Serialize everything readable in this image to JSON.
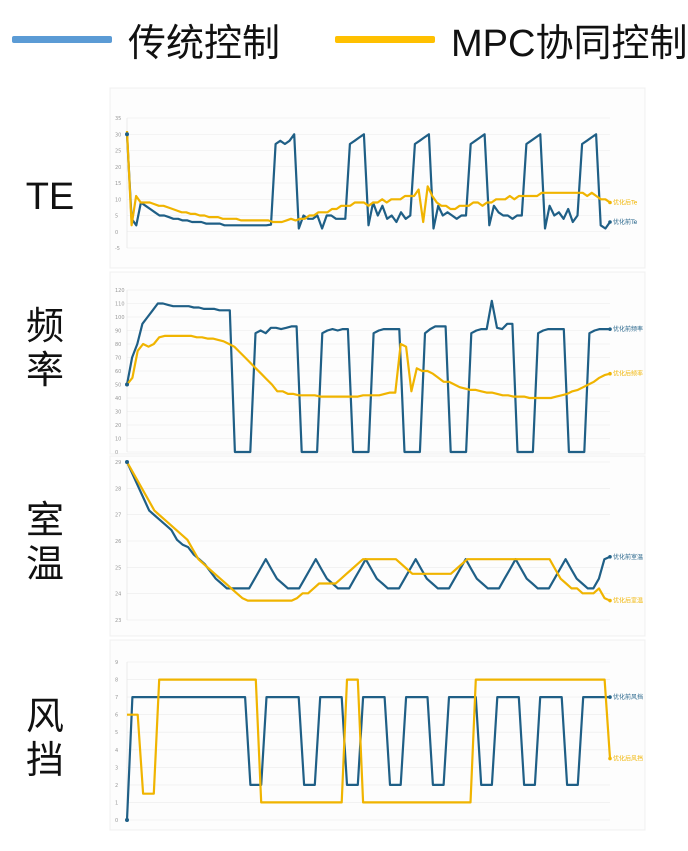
{
  "legend": [
    {
      "label": "传统控制",
      "color": "#1f5f86"
    },
    {
      "label": "MPC协同控制",
      "color": "#f0b400"
    }
  ],
  "legend_swatch_colors": [
    "#5b9bd5",
    "#ffc000"
  ],
  "rows": [
    {
      "label": "TE"
    },
    {
      "label": "频\n率"
    },
    {
      "label": "室\n温"
    },
    {
      "label": "风\n挡"
    }
  ],
  "chart_data": [
    {
      "type": "line",
      "title": "TE",
      "ylim": [
        -5,
        35
      ],
      "y_ticks": [
        "35",
        "30",
        "25",
        "20",
        "15",
        "10",
        "5",
        "0",
        "-5"
      ],
      "series": [
        {
          "name": "优化前Te",
          "color": "#1f5f86",
          "y": [
            30,
            4,
            2,
            9,
            8,
            7,
            6,
            5,
            5,
            4.5,
            4,
            4,
            3.5,
            3.5,
            3,
            3,
            3,
            2.5,
            2.5,
            2.5,
            2.5,
            2,
            2,
            2,
            2,
            2,
            2,
            2,
            2,
            2,
            2,
            2.2,
            27,
            28,
            27,
            28,
            30,
            1,
            5,
            4,
            4,
            5,
            1,
            5,
            5,
            4,
            4,
            4,
            27,
            28,
            29,
            30,
            2,
            9,
            5,
            8,
            4,
            5,
            3,
            6,
            4,
            5,
            27,
            28,
            29,
            30,
            1,
            8,
            5,
            6,
            5,
            4,
            5,
            5,
            27,
            28,
            29,
            30,
            2,
            8,
            6,
            5,
            5,
            4,
            5,
            5,
            27,
            28,
            29,
            30,
            1,
            8,
            5,
            6,
            4,
            7,
            3,
            5,
            27,
            28,
            29,
            30,
            2,
            1,
            3
          ]
        },
        {
          "name": "优化后Te",
          "color": "#f0b400",
          "y": [
            31,
            2,
            11,
            9,
            9,
            9,
            8.5,
            8,
            8,
            7.5,
            7,
            6.5,
            6,
            6,
            5.5,
            5.5,
            5,
            5,
            4.5,
            4.5,
            4.5,
            4,
            4,
            4,
            4,
            3.5,
            3.5,
            3.5,
            3.5,
            3.5,
            3.5,
            3.5,
            3,
            3,
            3,
            3.5,
            4,
            3.5,
            4,
            4,
            5,
            5,
            6,
            6,
            6,
            7,
            7,
            8,
            8,
            8,
            9,
            9,
            9,
            8,
            9,
            9,
            10,
            9,
            10,
            10,
            10,
            11,
            11,
            11,
            13,
            3,
            14,
            11,
            9,
            8,
            8,
            7,
            7,
            8,
            8,
            8,
            9,
            9,
            8,
            9,
            9,
            10,
            10,
            10,
            11,
            10,
            11,
            11,
            11,
            11,
            11,
            12,
            12,
            12,
            12,
            12,
            12,
            12,
            12,
            12,
            12,
            11,
            12,
            11,
            10,
            10,
            9
          ]
        }
      ]
    },
    {
      "type": "line",
      "title": "频率",
      "ylim": [
        0,
        120
      ],
      "y_ticks": [
        "120",
        "110",
        "100",
        "90",
        "80",
        "70",
        "60",
        "50",
        "40",
        "30",
        "20",
        "10",
        "0"
      ],
      "series": [
        {
          "name": "优化前频率",
          "color": "#1f5f86",
          "y": [
            50,
            70,
            80,
            95,
            100,
            105,
            110,
            110,
            109,
            108,
            108,
            108,
            108,
            107,
            107,
            106,
            106,
            106,
            105,
            105,
            105,
            0,
            0,
            0,
            0,
            88,
            90,
            88,
            92,
            92,
            91,
            92,
            93,
            93,
            0,
            0,
            0,
            0,
            88,
            90,
            91,
            90,
            91,
            91,
            0,
            0,
            0,
            0,
            88,
            90,
            91,
            91,
            91,
            91,
            0,
            0,
            0,
            0,
            88,
            91,
            93,
            93,
            93,
            0,
            0,
            0,
            0,
            88,
            90,
            91,
            91,
            112,
            92,
            91,
            95,
            95,
            0,
            0,
            0,
            0,
            88,
            90,
            91,
            91,
            91,
            91,
            0,
            0,
            0,
            0,
            88,
            90,
            91,
            91,
            91
          ]
        },
        {
          "name": "优化后频率",
          "color": "#f0b400",
          "y": [
            50,
            55,
            75,
            80,
            78,
            80,
            85,
            86,
            86,
            86,
            86,
            86,
            86,
            85,
            85,
            84,
            84,
            83,
            82,
            80,
            78,
            74,
            70,
            66,
            62,
            58,
            54,
            50,
            45,
            45,
            43,
            43,
            42,
            42,
            42,
            42,
            41,
            41,
            41,
            41,
            41,
            41,
            41,
            41,
            42,
            42,
            42,
            42,
            43,
            44,
            44,
            80,
            78,
            45,
            62,
            60,
            60,
            58,
            55,
            52,
            52,
            50,
            48,
            47,
            46,
            46,
            45,
            44,
            44,
            43,
            42,
            42,
            41,
            41,
            41,
            40,
            40,
            40,
            40,
            40,
            41,
            42,
            43,
            45,
            46,
            48,
            50,
            52,
            55,
            57,
            58
          ]
        }
      ]
    },
    {
      "type": "line",
      "title": "室温",
      "ylim": [
        22.5,
        29
      ],
      "y_ticks": [
        "29",
        "28",
        "27",
        "26",
        "25",
        "24",
        "23"
      ],
      "series": [
        {
          "name": "优化前室温",
          "color": "#1f5f86",
          "y": [
            29,
            28.5,
            28,
            27.5,
            27,
            26.8,
            26.6,
            26.4,
            26.2,
            25.8,
            25.6,
            25.5,
            25.2,
            25,
            24.8,
            24.5,
            24.2,
            24,
            23.8,
            23.8,
            23.8,
            23.8,
            23.8,
            24.2,
            24.6,
            25,
            24.6,
            24.2,
            24,
            23.8,
            23.8,
            23.8,
            24.2,
            24.6,
            25,
            24.6,
            24.2,
            24,
            23.8,
            23.8,
            23.8,
            24.2,
            24.6,
            25,
            24.6,
            24.2,
            24,
            23.8,
            23.8,
            23.8,
            24.2,
            24.6,
            25,
            24.6,
            24.2,
            24,
            23.8,
            23.8,
            23.8,
            24.2,
            24.6,
            25,
            24.6,
            24.2,
            24,
            23.8,
            23.8,
            23.8,
            24.2,
            24.6,
            25,
            24.6,
            24.2,
            24,
            23.8,
            23.8,
            23.8,
            24.2,
            24.6,
            25,
            24.6,
            24.2,
            24,
            23.8,
            23.8,
            24.2,
            25,
            25.1
          ]
        },
        {
          "name": "优化后室温",
          "color": "#f0b400",
          "y": [
            29,
            28.6,
            28.2,
            27.8,
            27.4,
            27,
            26.8,
            26.6,
            26.4,
            26.2,
            26,
            25.8,
            25.4,
            25,
            24.8,
            24.6,
            24.4,
            24.2,
            24,
            23.8,
            23.6,
            23.4,
            23.3,
            23.3,
            23.3,
            23.3,
            23.3,
            23.3,
            23.3,
            23.3,
            23.3,
            23.4,
            23.6,
            23.6,
            23.8,
            24,
            24,
            24,
            24,
            24.2,
            24.4,
            24.6,
            24.8,
            25,
            25,
            25,
            25,
            25,
            25,
            25,
            24.8,
            24.6,
            24.4,
            24.4,
            24.4,
            24.4,
            24.4,
            24.4,
            24.4,
            24.4,
            24.6,
            24.8,
            25,
            25,
            25,
            25,
            25,
            25,
            25,
            25,
            25,
            25,
            25,
            25,
            25,
            25,
            25,
            25,
            24.6,
            24.2,
            24,
            23.8,
            23.8,
            23.6,
            23.6,
            23.6,
            23.8,
            23.4,
            23.3
          ]
        }
      ]
    },
    {
      "type": "line",
      "title": "风挡",
      "ylim": [
        0,
        9
      ],
      "y_ticks": [
        "9",
        "8",
        "7",
        "6",
        "5",
        "4",
        "3",
        "2",
        "1",
        "0"
      ],
      "series": [
        {
          "name": "优化前风挡",
          "color": "#1f5f86",
          "y": [
            0,
            7,
            7,
            7,
            7,
            7,
            7,
            7,
            7,
            7,
            7,
            7,
            7,
            7,
            7,
            7,
            7,
            7,
            7,
            7,
            7,
            7,
            7,
            2,
            2,
            2,
            7,
            7,
            7,
            7,
            7,
            7,
            7,
            2,
            2,
            2,
            7,
            7,
            7,
            7,
            7,
            2,
            2,
            2,
            7,
            7,
            7,
            7,
            7,
            2,
            2,
            2,
            7,
            7,
            7,
            7,
            7,
            2,
            2,
            2,
            7,
            7,
            7,
            7,
            7,
            7,
            2,
            2,
            2,
            7,
            7,
            7,
            7,
            7,
            2,
            2,
            2,
            7,
            7,
            7,
            7,
            7,
            2,
            2,
            2,
            7,
            7,
            7,
            7,
            7,
            7
          ]
        },
        {
          "name": "优化后风挡",
          "color": "#f0b400",
          "y": [
            6,
            6,
            6,
            1.5,
            1.5,
            1.5,
            8,
            8,
            8,
            8,
            8,
            8,
            8,
            8,
            8,
            8,
            8,
            8,
            8,
            8,
            8,
            8,
            8,
            8,
            8,
            1,
            1,
            1,
            1,
            1,
            1,
            1,
            1,
            1,
            1,
            1,
            1,
            1,
            1,
            1,
            1,
            8,
            8,
            8,
            1,
            1,
            1,
            1,
            1,
            1,
            1,
            1,
            1,
            1,
            1,
            1,
            1,
            1,
            1,
            1,
            1,
            1,
            1,
            1,
            1,
            8,
            8,
            8,
            8,
            8,
            8,
            8,
            8,
            8,
            8,
            8,
            8,
            8,
            8,
            8,
            8,
            8,
            8,
            8,
            8,
            8,
            8,
            8,
            8,
            8,
            3.5
          ]
        }
      ]
    }
  ]
}
